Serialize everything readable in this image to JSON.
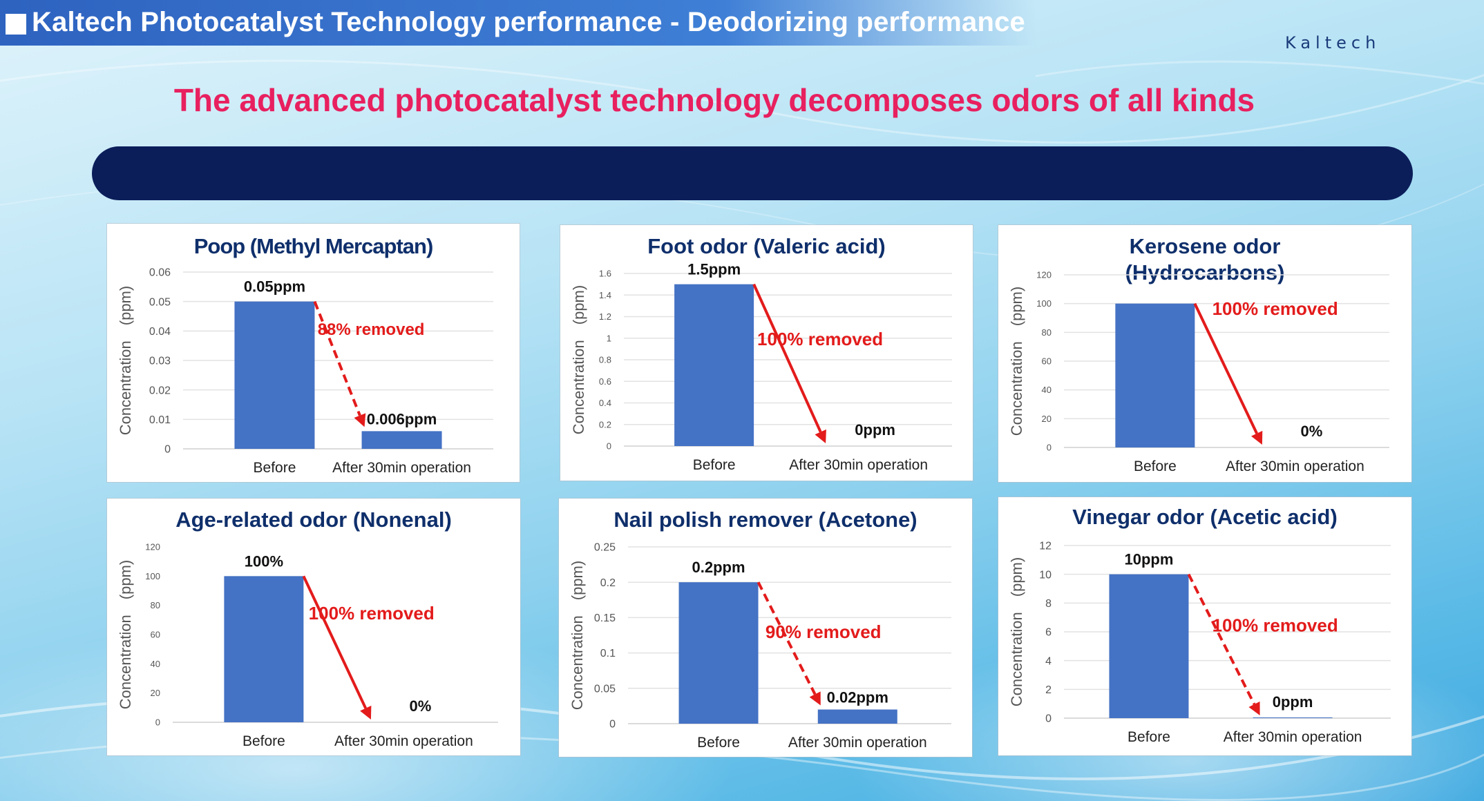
{
  "page": {
    "title": "Kaltech Photocatalyst Technology performance - Deodorizing performance",
    "brand": "Kaltech",
    "headline": "The advanced photocatalyst technology decomposes odors of all kinds"
  },
  "colors": {
    "bar": "#4472c4",
    "arrow": "#e31b1b",
    "title": "#0f2f6b",
    "headline": "#e8205f",
    "banner": "#0b1e5a"
  },
  "chart_data": [
    {
      "type": "bar",
      "title": "Poop (Methyl Mercaptan)",
      "ylabel": "Concentration　(ppm)",
      "categories": [
        "Before",
        "After 30min operation"
      ],
      "values": [
        0.05,
        0.006
      ],
      "data_labels": [
        "0.05ppm",
        "0.006ppm"
      ],
      "ylim": [
        0,
        0.06
      ],
      "yticks": [
        "0",
        "0.01",
        "0.02",
        "0.03",
        "0.04",
        "0.05",
        "0.06"
      ],
      "annotation": "88% removed",
      "arrow_style": "dashed",
      "grid": true
    },
    {
      "type": "bar",
      "title": "Foot odor (Valeric acid)",
      "ylabel": "Concentration　(ppm)",
      "categories": [
        "Before",
        "After 30min operation"
      ],
      "values": [
        1.5,
        0
      ],
      "data_labels": [
        "1.5ppm",
        "0ppm"
      ],
      "ylim": [
        0,
        1.6
      ],
      "yticks": [
        "0",
        "0.2",
        "0.4",
        "0.6",
        "0.8",
        "1",
        "1.2",
        "1.4",
        "1.6"
      ],
      "annotation": "100% removed",
      "arrow_style": "solid",
      "grid": true
    },
    {
      "type": "bar",
      "title": "Kerosene odor (Hydrocarbons)",
      "title_lines": [
        "Kerosene odor",
        "(Hydrocarbons)"
      ],
      "ylabel": "Concentration　(ppm)",
      "categories": [
        "Before",
        "After 30min operation"
      ],
      "values": [
        100,
        0
      ],
      "data_labels": [
        "",
        "0%"
      ],
      "ylim": [
        0,
        120
      ],
      "yticks": [
        "0",
        "20",
        "40",
        "60",
        "80",
        "100",
        "120"
      ],
      "annotation": "100% removed",
      "arrow_style": "solid",
      "grid": true
    },
    {
      "type": "bar",
      "title": "Age-related odor (Nonenal)",
      "ylabel": "Concentration　(ppm)",
      "categories": [
        "Before",
        "After 30min operation"
      ],
      "values": [
        100,
        0
      ],
      "data_labels": [
        "100%",
        "0%"
      ],
      "ylim": [
        0,
        120
      ],
      "yticks": [
        "0",
        "20",
        "40",
        "60",
        "80",
        "100",
        "120"
      ],
      "annotation": "100% removed",
      "arrow_style": "solid",
      "grid": false
    },
    {
      "type": "bar",
      "title": "Nail polish remover (Acetone)",
      "ylabel": "Concentration　(ppm)",
      "categories": [
        "Before",
        "After 30min operation"
      ],
      "values": [
        0.2,
        0.02
      ],
      "data_labels": [
        "0.2ppm",
        "0.02ppm"
      ],
      "ylim": [
        0,
        0.25
      ],
      "yticks": [
        "0",
        "0.05",
        "0.1",
        "0.15",
        "0.2",
        "0.25"
      ],
      "annotation": "90% removed",
      "arrow_style": "dashed",
      "grid": true
    },
    {
      "type": "bar",
      "title": "Vinegar odor (Acetic acid)",
      "ylabel": "Concentration　(ppm)",
      "categories": [
        "Before",
        "After 30min operation"
      ],
      "values": [
        10,
        0.05
      ],
      "data_labels": [
        "10ppm",
        "0ppm"
      ],
      "ylim": [
        0,
        12
      ],
      "yticks": [
        "0",
        "2",
        "4",
        "6",
        "8",
        "10",
        "12"
      ],
      "annotation": "100% removed",
      "arrow_style": "dashed",
      "grid": true
    }
  ]
}
